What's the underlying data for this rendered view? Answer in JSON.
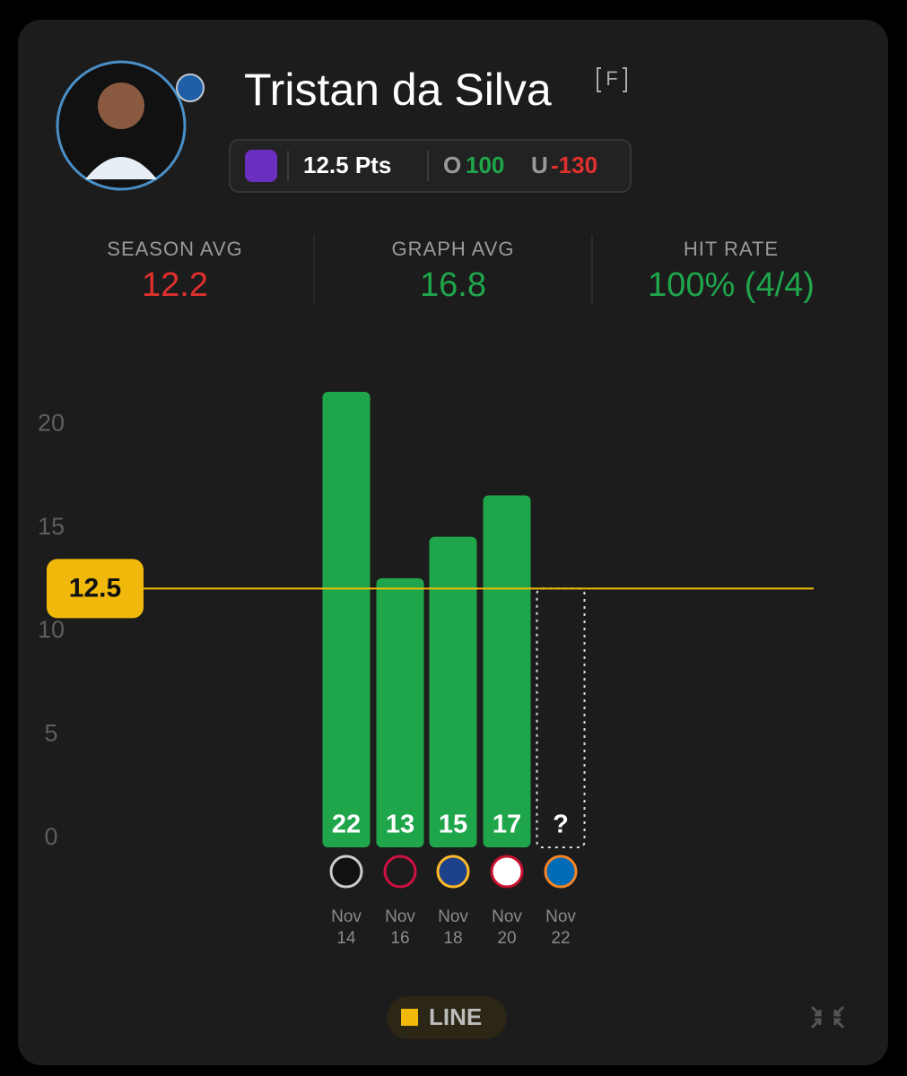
{
  "player": {
    "name": "Tristan da Silva",
    "position": "F"
  },
  "prop": {
    "line_text": "12.5 Pts",
    "over_label": "O",
    "over_odds": "100",
    "under_label": "U",
    "under_odds": "-130"
  },
  "stats": [
    {
      "label": "SEASON AVG",
      "value": "12.2",
      "color": "#e0302d"
    },
    {
      "label": "GRAPH AVG",
      "value": "16.8",
      "color": "#1fa64b"
    },
    {
      "label": "HIT RATE",
      "value": "100% (4/4)",
      "color": "#1fa64b"
    }
  ],
  "chart_data": {
    "type": "bar",
    "categories": [
      "Nov 14",
      "Nov 16",
      "Nov 18",
      "Nov 20",
      "Nov 22"
    ],
    "values": [
      22,
      13,
      15,
      17,
      null
    ],
    "value_labels": [
      "22",
      "13",
      "15",
      "17",
      "?"
    ],
    "color": "#1fa64b",
    "ylim": [
      0,
      22
    ],
    "yticks": [
      0,
      5,
      10,
      15,
      20
    ],
    "line": 12.5,
    "line_color": "#f0b90b",
    "line_name": "LINE"
  }
}
